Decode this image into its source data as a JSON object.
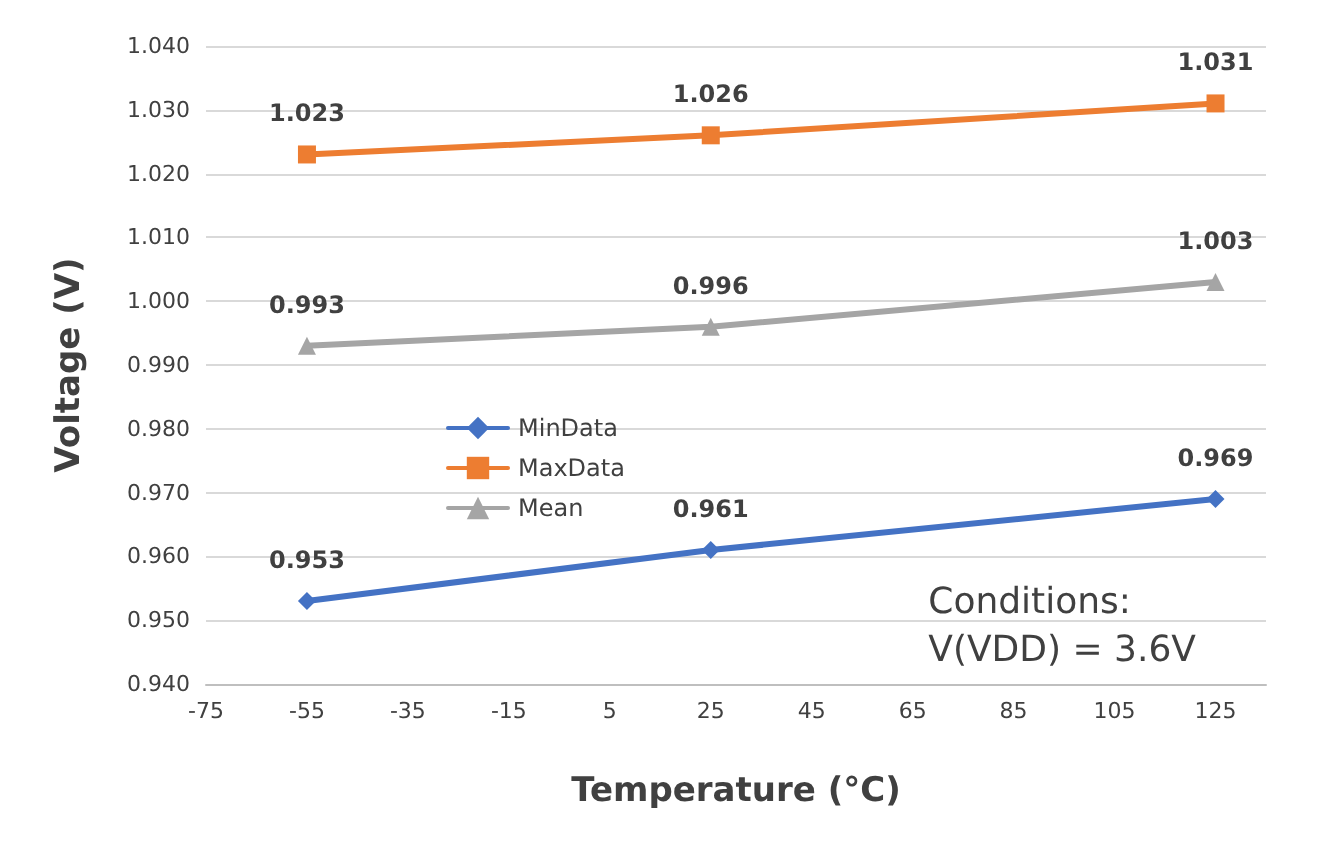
{
  "chart_data": {
    "type": "line",
    "xlabel": "Temperature (°C)",
    "ylabel": "Voltage (V)",
    "x": [
      -55,
      25,
      125
    ],
    "series": [
      {
        "name": "MinData",
        "color": "#4472c4",
        "marker": "diamond",
        "values": [
          0.953,
          0.961,
          0.969
        ]
      },
      {
        "name": "MaxData",
        "color": "#ed7d31",
        "marker": "square",
        "values": [
          1.023,
          1.026,
          1.031
        ]
      },
      {
        "name": "Mean",
        "color": "#a5a5a5",
        "marker": "triangle",
        "values": [
          0.993,
          0.996,
          1.003
        ]
      }
    ],
    "xlim": [
      -75,
      135
    ],
    "xticks": [
      -75,
      -55,
      -35,
      -15,
      5,
      25,
      45,
      65,
      85,
      105,
      125
    ],
    "ylim": [
      0.94,
      1.04
    ],
    "yticks": [
      {
        "value": 0.94,
        "label": "0.940"
      },
      {
        "value": 0.95,
        "label": "0.950"
      },
      {
        "value": 0.96,
        "label": "0.960"
      },
      {
        "value": 0.97,
        "label": "0.970"
      },
      {
        "value": 0.98,
        "label": "0.980"
      },
      {
        "value": 0.99,
        "label": "0.990"
      },
      {
        "value": 1.0,
        "label": "1.000"
      },
      {
        "value": 1.01,
        "label": "1.010"
      },
      {
        "value": 1.02,
        "label": "1.020"
      },
      {
        "value": 1.03,
        "label": "1.030"
      },
      {
        "value": 1.04,
        "label": "1.040"
      }
    ],
    "grid": "y",
    "legend": "left",
    "data_labels": true,
    "line_style": "solid",
    "annotations": [
      "Conditions:\nV(VDD) = 3.6V"
    ]
  }
}
